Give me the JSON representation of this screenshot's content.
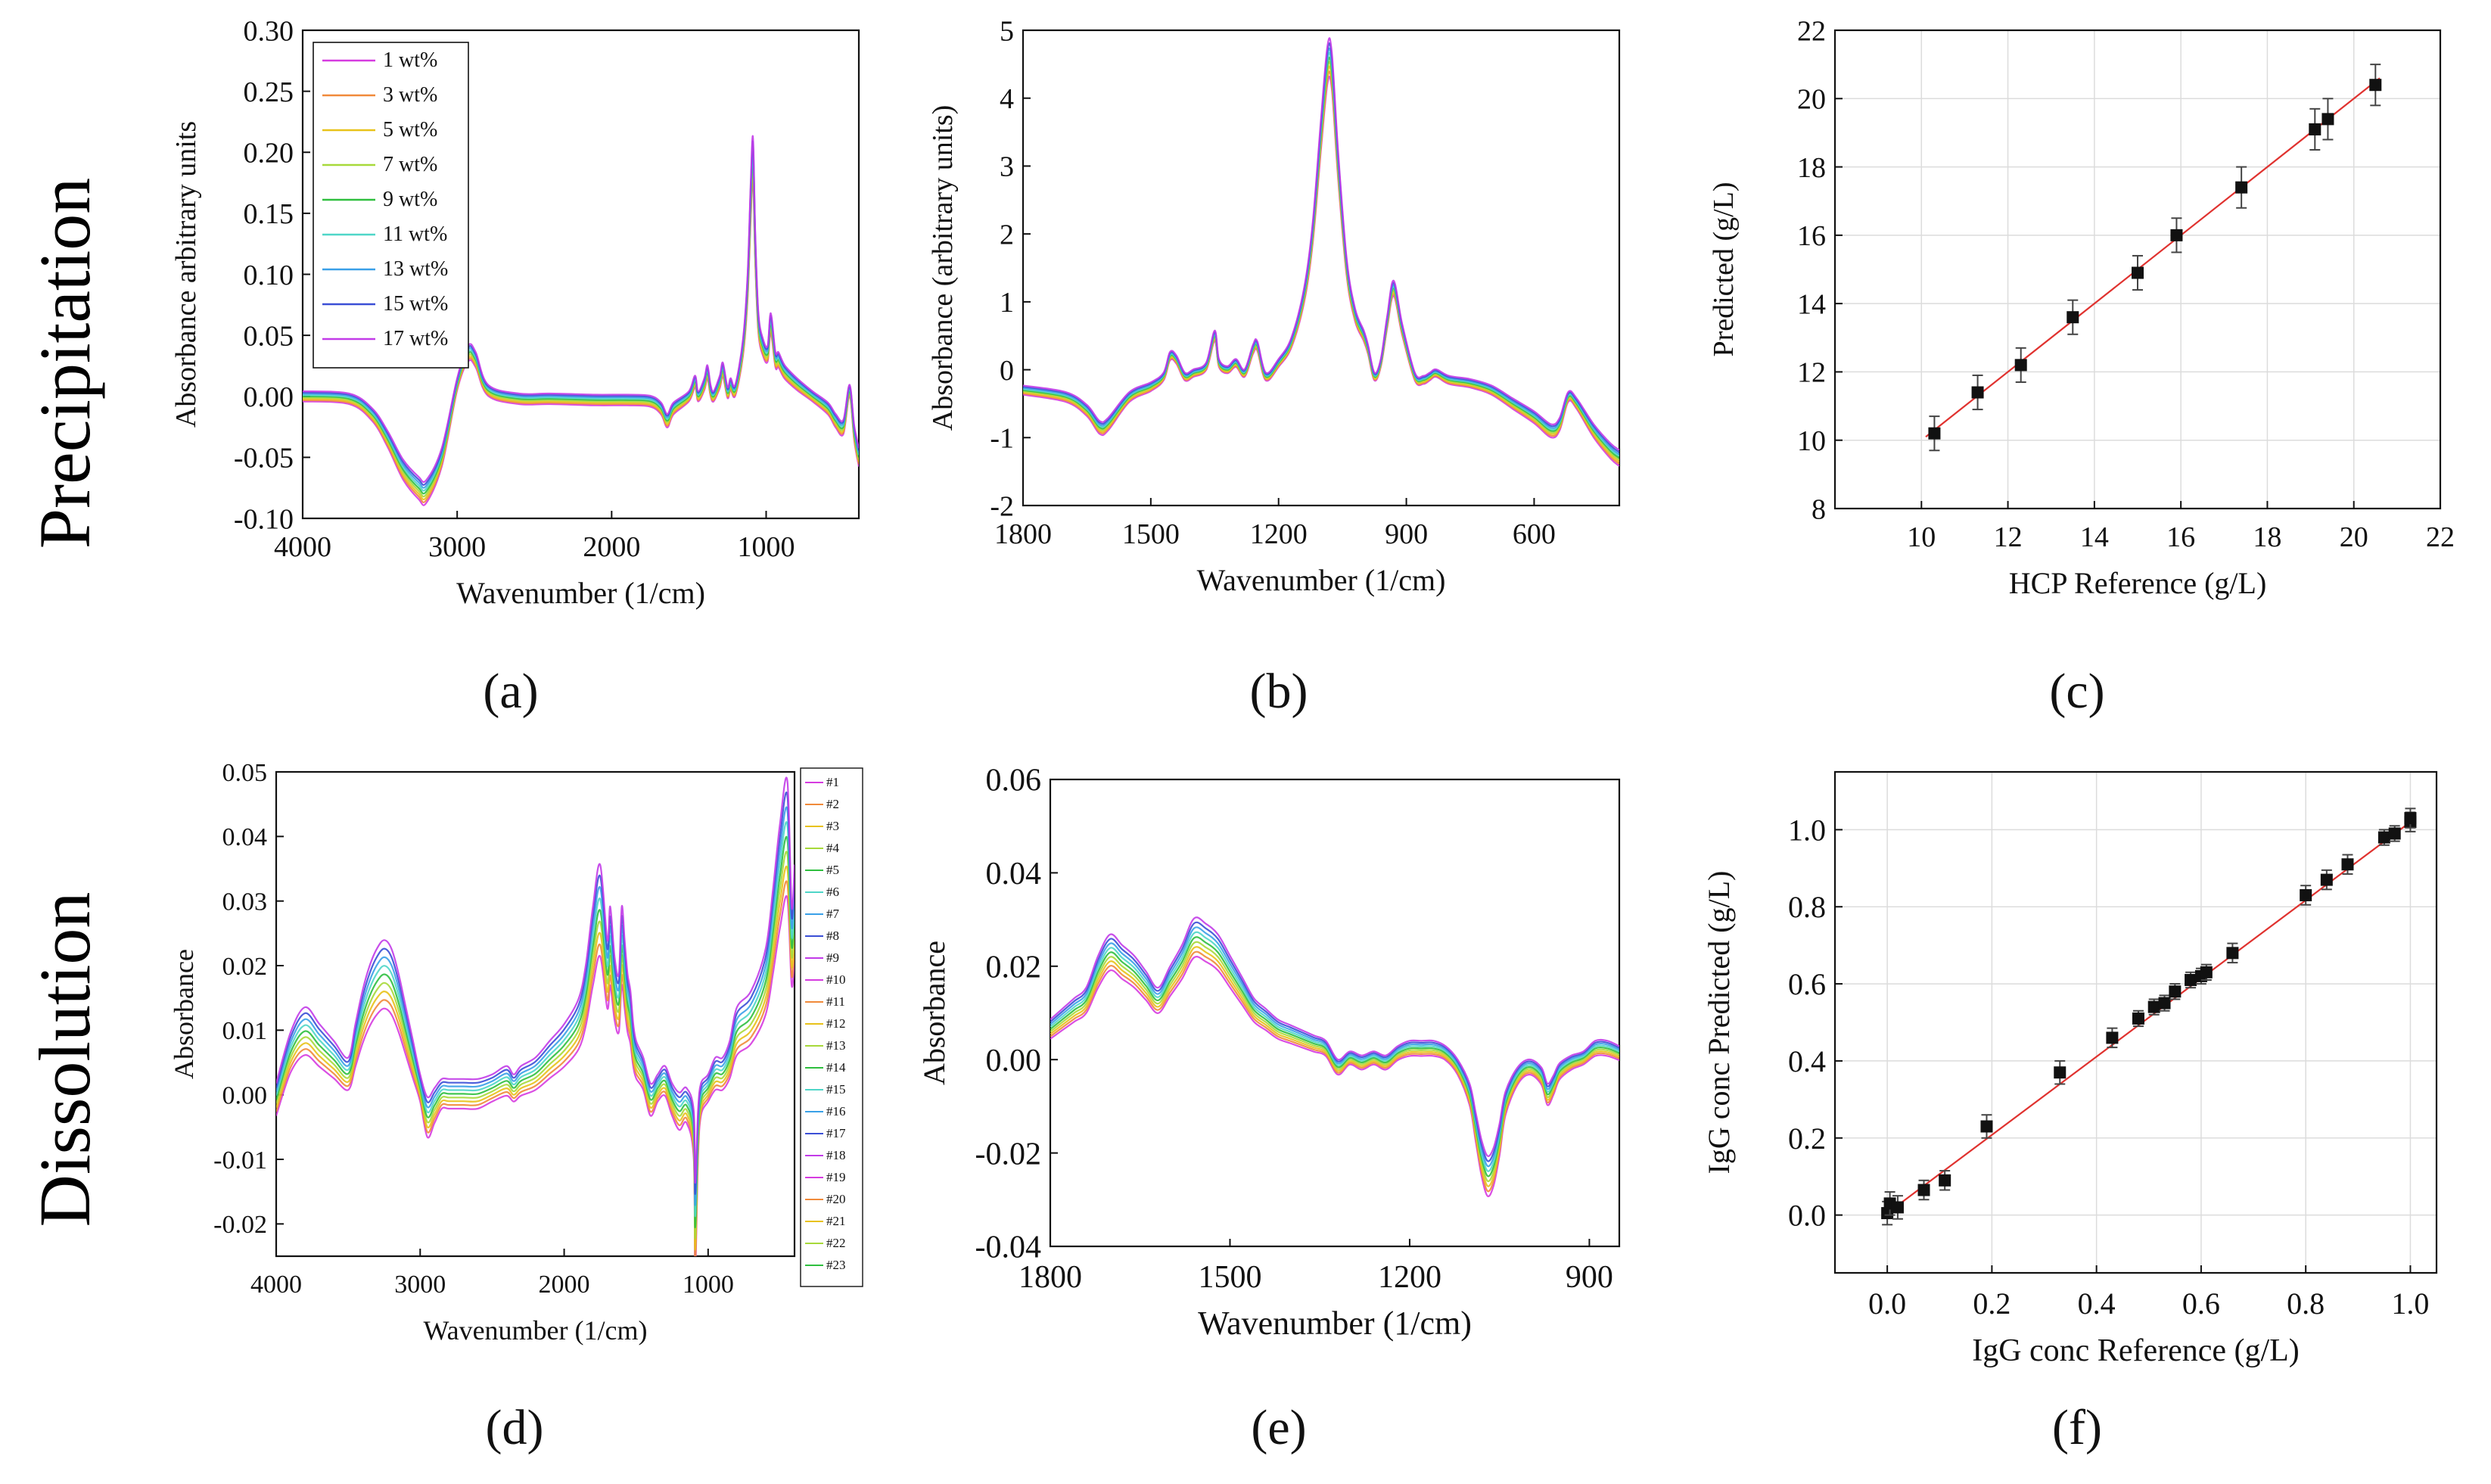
{
  "row_labels": [
    "Precipitation",
    "Dissolution"
  ],
  "series_colors": [
    "#d63be0",
    "#f08a3a",
    "#e8c21a",
    "#a7d93a",
    "#2fbf3f",
    "#4fd6c8",
    "#3aa0e8",
    "#3b4fd6",
    "#c23be8"
  ],
  "chart_data": [
    {
      "id": "a",
      "type": "line",
      "panel_label": "(a)",
      "xlabel": "Wavenumber (1/cm)",
      "ylabel": "Absorbance arbitrary units",
      "xlim": [
        4000,
        400
      ],
      "ylim": [
        -0.1,
        0.3
      ],
      "xticks": [
        4000,
        3000,
        2000,
        1000
      ],
      "yticks": [
        -0.1,
        -0.05,
        0.0,
        0.05,
        0.1,
        0.15,
        0.2,
        0.25,
        0.3
      ],
      "xtick_labels": [
        "4000",
        "3000",
        "2000",
        "1000"
      ],
      "ytick_labels": [
        "-0.10",
        "-0.05",
        "0.00",
        "0.05",
        "0.10",
        "0.15",
        "0.20",
        "0.25",
        "0.30"
      ],
      "legend": [
        "1 wt%",
        "3 wt%",
        "5 wt%",
        "7 wt%",
        "9 wt%",
        "11 wt%",
        "13 wt%",
        "15 wt%",
        "17 wt%"
      ],
      "legend_position": "top-left",
      "base": {
        "x": [
          4000,
          3700,
          3550,
          3450,
          3350,
          3250,
          3200,
          3100,
          3000,
          2930,
          2880,
          2800,
          2600,
          2400,
          2100,
          1900,
          1750,
          1680,
          1640,
          1600,
          1500,
          1460,
          1440,
          1400,
          1380,
          1360,
          1340,
          1300,
          1280,
          1250,
          1230,
          1200,
          1150,
          1120,
          1100,
          1085,
          1070,
          1050,
          1020,
          990,
          970,
          940,
          920,
          880,
          800,
          700,
          600,
          550,
          500,
          460,
          430,
          400
        ],
        "y": [
          0.0,
          -0.002,
          -0.015,
          -0.035,
          -0.06,
          -0.075,
          -0.078,
          -0.05,
          0.01,
          0.035,
          0.03,
          0.005,
          -0.002,
          -0.002,
          -0.003,
          -0.003,
          -0.004,
          -0.01,
          -0.02,
          -0.01,
          0.0,
          0.012,
          0.0,
          0.01,
          0.02,
          0.005,
          0.0,
          0.012,
          0.022,
          0.003,
          0.01,
          0.005,
          0.04,
          0.09,
          0.16,
          0.195,
          0.12,
          0.06,
          0.04,
          0.035,
          0.06,
          0.03,
          0.03,
          0.02,
          0.01,
          0.0,
          -0.01,
          -0.02,
          -0.025,
          0.005,
          -0.03,
          -0.05
        ]
      },
      "spread": [
        -0.012,
        -0.009,
        -0.006,
        -0.003,
        0.0,
        0.003,
        0.006,
        0.009,
        0.012
      ]
    },
    {
      "id": "b",
      "type": "line",
      "panel_label": "(b)",
      "xlabel": "Wavenumber (1/cm)",
      "ylabel": "Absorbance (arbitrary units)",
      "xlim": [
        1800,
        400
      ],
      "ylim": [
        -2,
        5
      ],
      "xticks": [
        1800,
        1500,
        1200,
        900,
        600
      ],
      "yticks": [
        -2,
        -1,
        0,
        1,
        2,
        3,
        4,
        5
      ],
      "xtick_labels": [
        "1800",
        "1500",
        "1200",
        "900",
        "600"
      ],
      "ytick_labels": [
        "-2",
        "-1",
        "0",
        "1",
        "2",
        "3",
        "4",
        "5"
      ],
      "base": {
        "x": [
          1800,
          1700,
          1650,
          1620,
          1600,
          1550,
          1500,
          1470,
          1455,
          1440,
          1420,
          1400,
          1370,
          1350,
          1340,
          1320,
          1300,
          1280,
          1260,
          1250,
          1230,
          1200,
          1170,
          1140,
          1120,
          1100,
          1085,
          1075,
          1060,
          1040,
          1020,
          1000,
          990,
          975,
          960,
          945,
          930,
          910,
          880,
          860,
          845,
          830,
          800,
          750,
          700,
          650,
          600,
          560,
          540,
          520,
          500,
          460,
          420,
          400
        ],
        "y": [
          -0.3,
          -0.4,
          -0.6,
          -0.85,
          -0.8,
          -0.4,
          -0.25,
          -0.1,
          0.2,
          0.15,
          -0.1,
          -0.05,
          0.05,
          0.5,
          0.1,
          0.0,
          0.1,
          -0.05,
          0.3,
          0.35,
          -0.1,
          0.1,
          0.4,
          1.1,
          2.0,
          3.5,
          4.5,
          4.4,
          3.0,
          1.5,
          0.8,
          0.5,
          0.3,
          -0.1,
          0.1,
          0.7,
          1.2,
          0.6,
          -0.1,
          -0.15,
          -0.1,
          -0.05,
          -0.15,
          -0.2,
          -0.3,
          -0.5,
          -0.7,
          -0.9,
          -0.8,
          -0.4,
          -0.5,
          -0.9,
          -1.2,
          -1.3
        ]
      },
      "spread": [
        -0.15,
        -0.11,
        -0.07,
        -0.035,
        0.0,
        0.035,
        0.07,
        0.11,
        0.15
      ]
    },
    {
      "id": "c",
      "type": "scatter",
      "panel_label": "(c)",
      "xlabel": "HCP Reference (g/L)",
      "ylabel": "Predicted (g/L)",
      "xlim": [
        8,
        22
      ],
      "ylim": [
        8,
        22
      ],
      "xticks": [
        10,
        12,
        14,
        16,
        18,
        20,
        22
      ],
      "yticks": [
        8,
        10,
        12,
        14,
        16,
        18,
        20,
        22
      ],
      "xtick_labels": [
        "10",
        "12",
        "14",
        "16",
        "18",
        "20",
        "22"
      ],
      "ytick_labels": [
        "8",
        "10",
        "12",
        "14",
        "16",
        "18",
        "20",
        "22"
      ],
      "grid": true,
      "x": [
        10.3,
        11.3,
        12.3,
        13.5,
        15.0,
        15.9,
        17.4,
        19.1,
        19.4,
        20.5
      ],
      "y": [
        10.2,
        11.4,
        12.2,
        13.6,
        14.9,
        16.0,
        17.4,
        19.1,
        19.4,
        20.4
      ],
      "error": [
        0.5,
        0.5,
        0.5,
        0.5,
        0.5,
        0.5,
        0.6,
        0.6,
        0.6,
        0.6
      ],
      "fit_line": {
        "x": [
          10.1,
          20.6
        ],
        "y": [
          10.1,
          20.6
        ]
      }
    },
    {
      "id": "d",
      "type": "line",
      "panel_label": "(d)",
      "xlabel": "Wavenumber (1/cm)",
      "ylabel": "Absorbance",
      "xlim": [
        4000,
        400
      ],
      "ylim": [
        -0.025,
        0.05
      ],
      "xticks": [
        4000,
        3000,
        2000,
        1000
      ],
      "yticks": [
        -0.02,
        -0.01,
        0.0,
        0.01,
        0.02,
        0.03,
        0.04,
        0.05
      ],
      "xtick_labels": [
        "4000",
        "3000",
        "2000",
        "1000"
      ],
      "ytick_labels": [
        "-0.02",
        "-0.01",
        "0.00",
        "0.01",
        "0.02",
        "0.03",
        "0.04",
        "0.05"
      ],
      "legend": [
        "#1",
        "#2",
        "#3",
        "#4",
        "#5",
        "#6",
        "#7",
        "#8",
        "#9",
        "#10",
        "#11",
        "#12",
        "#13",
        "#14",
        "#15",
        "#16",
        "#17",
        "#18",
        "#19",
        "#20",
        "#21",
        "#22",
        "#23"
      ],
      "legend_position": "right-outside",
      "base": {
        "x": [
          4000,
          3900,
          3800,
          3700,
          3600,
          3500,
          3450,
          3400,
          3350,
          3300,
          3250,
          3200,
          3150,
          3100,
          3050,
          3000,
          2950,
          2900,
          2850,
          2800,
          2700,
          2600,
          2500,
          2400,
          2350,
          2300,
          2200,
          2100,
          2000,
          1900,
          1850,
          1800,
          1750,
          1700,
          1680,
          1650,
          1620,
          1600,
          1580,
          1560,
          1540,
          1520,
          1500,
          1450,
          1400,
          1350,
          1300,
          1250,
          1200,
          1150,
          1100,
          1090,
          1070,
          1050,
          1000,
          950,
          900,
          850,
          800,
          700,
          600,
          550,
          500,
          450,
          420,
          400
        ],
        "y": [
          -0.002,
          0.005,
          0.008,
          0.006,
          0.004,
          0.002,
          0.006,
          0.01,
          0.013,
          0.015,
          0.016,
          0.015,
          0.012,
          0.008,
          0.004,
          0.0,
          -0.005,
          -0.003,
          -0.001,
          -0.001,
          -0.001,
          -0.001,
          0.0,
          0.001,
          0.0,
          0.001,
          0.002,
          0.004,
          0.006,
          0.009,
          0.013,
          0.02,
          0.025,
          0.016,
          0.02,
          0.014,
          0.012,
          0.02,
          0.016,
          0.012,
          0.01,
          0.006,
          0.004,
          0.002,
          -0.002,
          0.0,
          0.001,
          -0.002,
          -0.004,
          -0.003,
          -0.008,
          -0.024,
          -0.008,
          -0.002,
          0.0,
          0.002,
          0.002,
          0.004,
          0.008,
          0.01,
          0.015,
          0.022,
          0.03,
          0.035,
          0.02,
          0.025
        ]
      },
      "spread": [
        -0.003,
        -0.0015,
        0.0,
        0.0015,
        0.003,
        0.0045,
        0.006,
        0.0075,
        0.009
      ]
    },
    {
      "id": "e",
      "type": "line",
      "panel_label": "(e)",
      "xlabel": "Wavenumber (1/cm)",
      "ylabel": "Absorbance",
      "xlim": [
        1800,
        850
      ],
      "ylim": [
        -0.04,
        0.06
      ],
      "xticks": [
        1800,
        1500,
        1200,
        900
      ],
      "yticks": [
        -0.04,
        -0.02,
        0.0,
        0.02,
        0.04,
        0.06
      ],
      "xtick_labels": [
        "1800",
        "1500",
        "1200",
        "900"
      ],
      "ytick_labels": [
        "-0.04",
        "-0.02",
        "0.00",
        "0.02",
        "0.04",
        "0.06"
      ],
      "base": {
        "x": [
          1800,
          1780,
          1760,
          1740,
          1720,
          1700,
          1680,
          1660,
          1640,
          1620,
          1600,
          1580,
          1560,
          1540,
          1520,
          1500,
          1480,
          1460,
          1440,
          1420,
          1400,
          1380,
          1360,
          1340,
          1320,
          1300,
          1280,
          1260,
          1240,
          1220,
          1200,
          1180,
          1160,
          1140,
          1120,
          1100,
          1090,
          1080,
          1070,
          1060,
          1050,
          1040,
          1020,
          1000,
          980,
          970,
          960,
          950,
          930,
          910,
          890,
          870,
          850
        ],
        "y": [
          0.006,
          0.008,
          0.01,
          0.012,
          0.018,
          0.022,
          0.02,
          0.018,
          0.015,
          0.012,
          0.016,
          0.02,
          0.025,
          0.024,
          0.022,
          0.018,
          0.014,
          0.01,
          0.008,
          0.006,
          0.005,
          0.004,
          0.003,
          0.002,
          -0.002,
          0.0,
          -0.001,
          0.0,
          -0.001,
          0.001,
          0.002,
          0.002,
          0.002,
          0.001,
          -0.002,
          -0.008,
          -0.015,
          -0.022,
          -0.026,
          -0.024,
          -0.018,
          -0.01,
          -0.004,
          -0.002,
          -0.004,
          -0.008,
          -0.006,
          -0.003,
          -0.001,
          0.0,
          0.002,
          0.002,
          0.001
        ]
      },
      "spread": [
        -0.003,
        -0.002,
        -0.001,
        0.0,
        0.001,
        0.002,
        0.003,
        0.004,
        0.005
      ]
    },
    {
      "id": "f",
      "type": "scatter",
      "panel_label": "(f)",
      "xlabel": "IgG conc Reference (g/L)",
      "ylabel": "IgG conc Predicted (g/L)",
      "xlim": [
        -0.1,
        1.05
      ],
      "ylim": [
        -0.15,
        1.15
      ],
      "xticks": [
        0.0,
        0.2,
        0.4,
        0.6,
        0.8,
        1.0
      ],
      "yticks": [
        0.0,
        0.2,
        0.4,
        0.6,
        0.8,
        1.0
      ],
      "xtick_labels": [
        "0.0",
        "0.2",
        "0.4",
        "0.6",
        "0.8",
        "1.0"
      ],
      "ytick_labels": [
        "0.0",
        "0.2",
        "0.4",
        "0.6",
        "0.8",
        "1.0"
      ],
      "grid": true,
      "x": [
        0.0,
        0.005,
        0.02,
        0.07,
        0.11,
        0.19,
        0.33,
        0.43,
        0.48,
        0.51,
        0.53,
        0.55,
        0.58,
        0.6,
        0.61,
        0.66,
        0.8,
        0.84,
        0.88,
        0.95,
        0.97,
        1.0,
        1.0
      ],
      "y": [
        0.005,
        0.03,
        0.02,
        0.065,
        0.09,
        0.23,
        0.37,
        0.46,
        0.51,
        0.54,
        0.55,
        0.58,
        0.61,
        0.62,
        0.63,
        0.68,
        0.83,
        0.87,
        0.91,
        0.98,
        0.99,
        1.02,
        1.03
      ],
      "error": [
        0.03,
        0.03,
        0.03,
        0.025,
        0.025,
        0.03,
        0.03,
        0.025,
        0.02,
        0.02,
        0.02,
        0.02,
        0.02,
        0.02,
        0.02,
        0.025,
        0.025,
        0.025,
        0.025,
        0.02,
        0.02,
        0.025,
        0.025
      ],
      "fit_line": {
        "x": [
          0.0,
          1.0
        ],
        "y": [
          0.005,
          1.02
        ]
      }
    }
  ]
}
